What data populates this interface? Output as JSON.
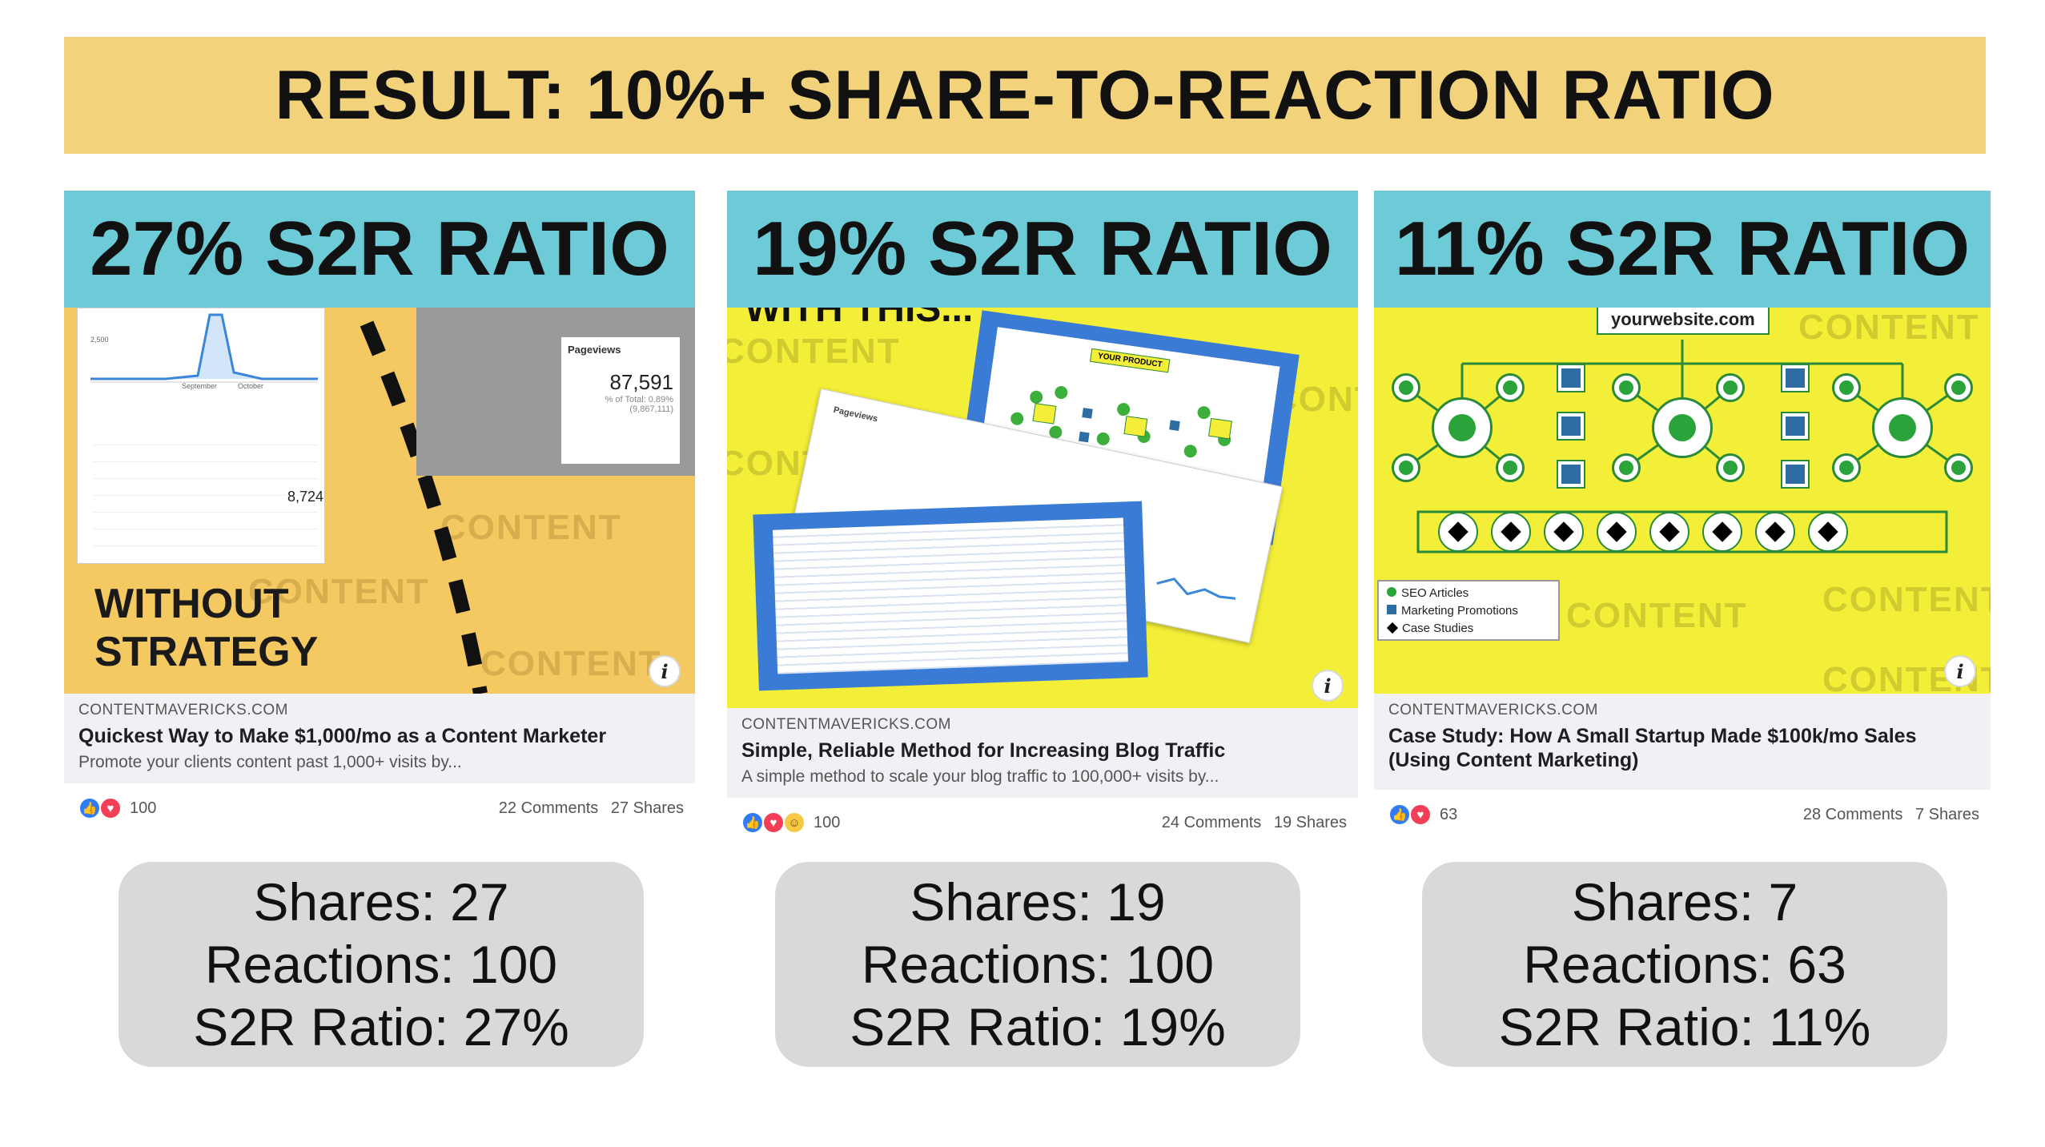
{
  "banner": {
    "title": "RESULT: 10%+ SHARE-TO-REACTION RATIO"
  },
  "cards": [
    {
      "header": "27% S2R RATIO",
      "image": {
        "overlay_text_1": "WITHOUT",
        "overlay_text_2": "STRATEGY",
        "metric_label": "Pageviews",
        "metric_value": "87,591",
        "metric_sub": "% of Total: 0.89%",
        "metric_sub2": "(9,867,111)",
        "small_value": "8,724",
        "axis_label_1": "September",
        "axis_label_2": "October",
        "axis_top": "2,500",
        "watermark": "CONTENT"
      },
      "domain": "CONTENTMAVERICKS.COM",
      "title": "Quickest Way to Make $1,000/mo as a Content Marketer",
      "description": "Promote your clients content past 1,000+ visits by...",
      "reaction_count": "100",
      "comments": "22 Comments",
      "shares": "27 Shares"
    },
    {
      "header": "19% S2R RATIO",
      "image": {
        "top_text": "WITH THIS...",
        "panel_label": "YOUR PRODUCT",
        "sheet_label": "Pageviews",
        "watermark": "CONTENT"
      },
      "domain": "CONTENTMAVERICKS.COM",
      "title": "Simple, Reliable Method for Increasing Blog Traffic",
      "description": "A simple method to scale your blog traffic to 100,000+ visits by...",
      "reaction_count": "100",
      "comments": "24 Comments",
      "shares": "19 Shares"
    },
    {
      "header": "11% S2R RATIO",
      "image": {
        "site_label": "yourwebsite.com",
        "legend": [
          "SEO Articles",
          "Marketing Promotions",
          "Case Studies"
        ],
        "watermark": "CONTENT"
      },
      "domain": "CONTENTMAVERICKS.COM",
      "title": "Case Study: How A Small Startup Made $100k/mo Sales (Using Content Marketing)",
      "description": "",
      "reaction_count": "63",
      "comments": "28 Comments",
      "shares": "7 Shares"
    }
  ],
  "stats": [
    {
      "shares": "Shares: 27",
      "reactions": "Reactions: 100",
      "ratio": "S2R Ratio: 27%"
    },
    {
      "shares": "Shares: 19",
      "reactions": "Reactions: 100",
      "ratio": "S2R Ratio: 19%"
    },
    {
      "shares": "Shares: 7",
      "reactions": "Reactions: 63",
      "ratio": "S2R Ratio: 11%"
    }
  ],
  "icons": {
    "like": "thumbs-up-icon",
    "love": "heart-icon",
    "haha": "laugh-icon",
    "info": "info-icon"
  },
  "colors": {
    "banner": "#f2d27a",
    "header": "#6ccbd7",
    "stat_box": "#d9d9d9",
    "like": "#2f7cf6",
    "love": "#f33e58"
  }
}
